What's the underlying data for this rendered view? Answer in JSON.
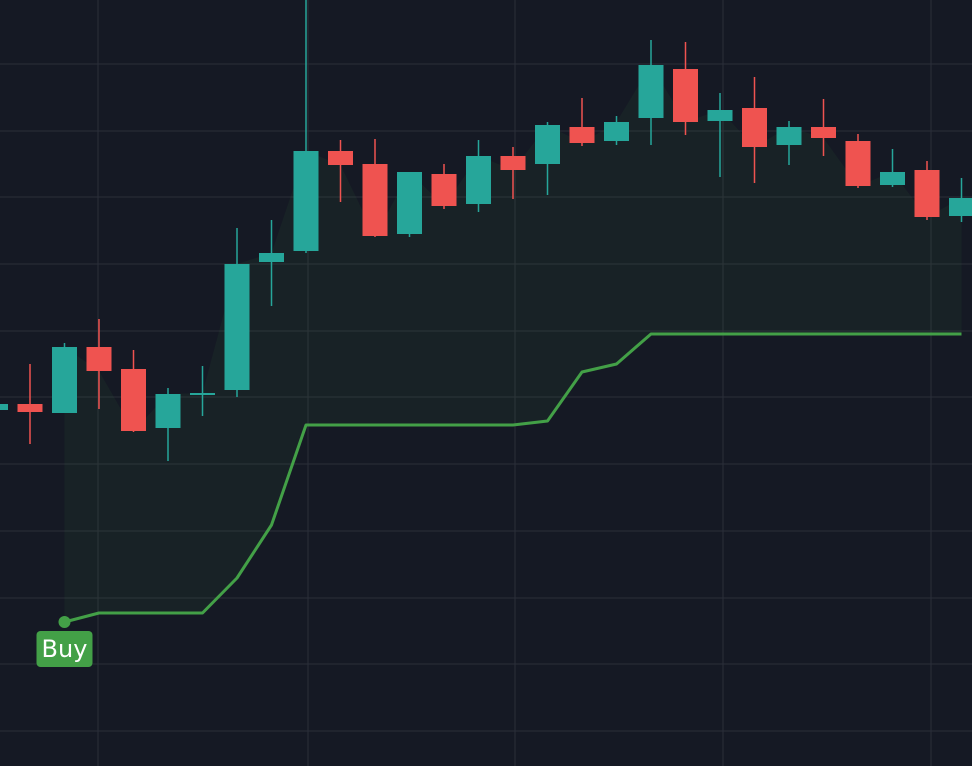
{
  "chart_data": {
    "type": "candlestick",
    "ylim": [
      0,
      766
    ],
    "up_color": "#26a69a",
    "down_color": "#ef5350",
    "open": [
      356,
      362,
      353,
      419,
      397,
      338,
      371,
      376,
      504,
      515,
      615,
      602,
      532,
      592,
      562,
      610,
      602,
      639,
      625,
      648,
      697,
      645,
      658,
      621,
      639,
      625,
      581,
      596,
      550
    ],
    "high": [
      366,
      402,
      423,
      447,
      416,
      378,
      400,
      538,
      546,
      766,
      626,
      627,
      594,
      602,
      626,
      619,
      644,
      668,
      650,
      726,
      724,
      673,
      689,
      645,
      667,
      632,
      617,
      605,
      588
    ],
    "low": [
      354,
      322,
      353,
      357,
      334,
      305,
      350,
      369,
      460,
      513,
      564,
      529,
      529,
      557,
      554,
      567,
      571,
      620,
      621,
      621,
      631,
      589,
      583,
      601,
      610,
      578,
      579,
      546,
      544
    ],
    "close": [
      362,
      354,
      419,
      395,
      335,
      372,
      373,
      502,
      513,
      615,
      601,
      530,
      594,
      560,
      610,
      596,
      641,
      623,
      644,
      701,
      644,
      656,
      619,
      639,
      628,
      580,
      594,
      549,
      568
    ],
    "stop_line": {
      "color": "#43a047",
      "values": [
        null,
        null,
        144,
        153,
        153,
        153,
        153,
        188,
        241,
        341,
        341,
        341,
        341,
        341,
        341,
        341,
        345,
        394,
        402,
        432,
        432,
        432,
        432,
        432,
        432,
        432,
        432,
        432,
        432
      ]
    },
    "annotation": {
      "text": "Buy",
      "index": 2
    }
  }
}
